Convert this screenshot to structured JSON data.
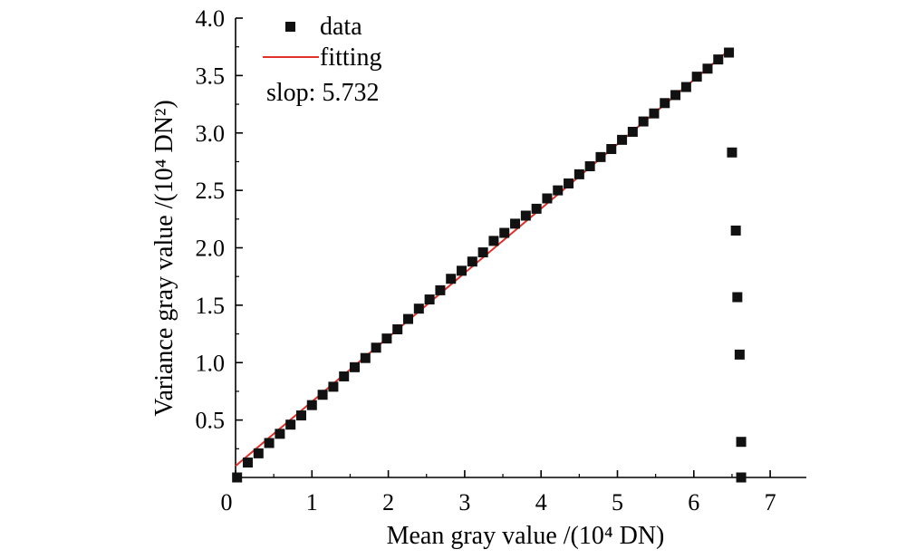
{
  "chart_data": {
    "type": "scatter",
    "xlabel": "Mean gray value /(10⁴ DN)",
    "ylabel": "Variance gray value /(10⁴ DN²)",
    "xlim": [
      0,
      7.5
    ],
    "ylim": [
      0,
      4.0
    ],
    "x_ticks": [
      "0",
      "1",
      "2",
      "3",
      "4",
      "5",
      "6",
      "7"
    ],
    "y_ticks": [
      "0.5",
      "1.0",
      "1.5",
      "2.0",
      "2.5",
      "3.0",
      "3.5",
      "4.0"
    ],
    "grid": false,
    "legend": {
      "position": "top-left",
      "entries": [
        {
          "label": "data",
          "marker": "square"
        },
        {
          "label": "fitting",
          "marker": "line"
        }
      ]
    },
    "annotation": "slop: 5.732",
    "colors": {
      "data": "#111111",
      "fitting": "#e0312b"
    },
    "series": [
      {
        "name": "data",
        "points": [
          [
            0.02,
            0.0
          ],
          [
            0.16,
            0.13
          ],
          [
            0.3,
            0.21
          ],
          [
            0.44,
            0.3
          ],
          [
            0.58,
            0.38
          ],
          [
            0.72,
            0.46
          ],
          [
            0.86,
            0.54
          ],
          [
            1.0,
            0.63
          ],
          [
            1.14,
            0.72
          ],
          [
            1.28,
            0.79
          ],
          [
            1.42,
            0.88
          ],
          [
            1.56,
            0.96
          ],
          [
            1.7,
            1.04
          ],
          [
            1.84,
            1.13
          ],
          [
            1.98,
            1.21
          ],
          [
            2.12,
            1.29
          ],
          [
            2.26,
            1.38
          ],
          [
            2.4,
            1.47
          ],
          [
            2.54,
            1.55
          ],
          [
            2.68,
            1.63
          ],
          [
            2.82,
            1.73
          ],
          [
            2.96,
            1.8
          ],
          [
            3.1,
            1.88
          ],
          [
            3.24,
            1.96
          ],
          [
            3.38,
            2.06
          ],
          [
            3.52,
            2.13
          ],
          [
            3.66,
            2.21
          ],
          [
            3.8,
            2.28
          ],
          [
            3.94,
            2.34
          ],
          [
            4.08,
            2.43
          ],
          [
            4.22,
            2.5
          ],
          [
            4.36,
            2.56
          ],
          [
            4.5,
            2.64
          ],
          [
            4.64,
            2.71
          ],
          [
            4.78,
            2.79
          ],
          [
            4.92,
            2.86
          ],
          [
            5.06,
            2.94
          ],
          [
            5.2,
            3.01
          ],
          [
            5.34,
            3.1
          ],
          [
            5.48,
            3.17
          ],
          [
            5.62,
            3.26
          ],
          [
            5.76,
            3.33
          ],
          [
            5.9,
            3.4
          ],
          [
            6.04,
            3.49
          ],
          [
            6.18,
            3.56
          ],
          [
            6.32,
            3.64
          ],
          [
            6.46,
            3.7
          ],
          [
            6.5,
            2.83
          ],
          [
            6.55,
            2.15
          ],
          [
            6.57,
            1.57
          ],
          [
            6.6,
            1.07
          ],
          [
            6.62,
            0.31
          ],
          [
            6.62,
            0.0
          ]
        ]
      },
      {
        "name": "fitting",
        "line": [
          [
            0.0,
            0.1
          ],
          [
            6.46,
            3.72
          ]
        ]
      }
    ]
  }
}
